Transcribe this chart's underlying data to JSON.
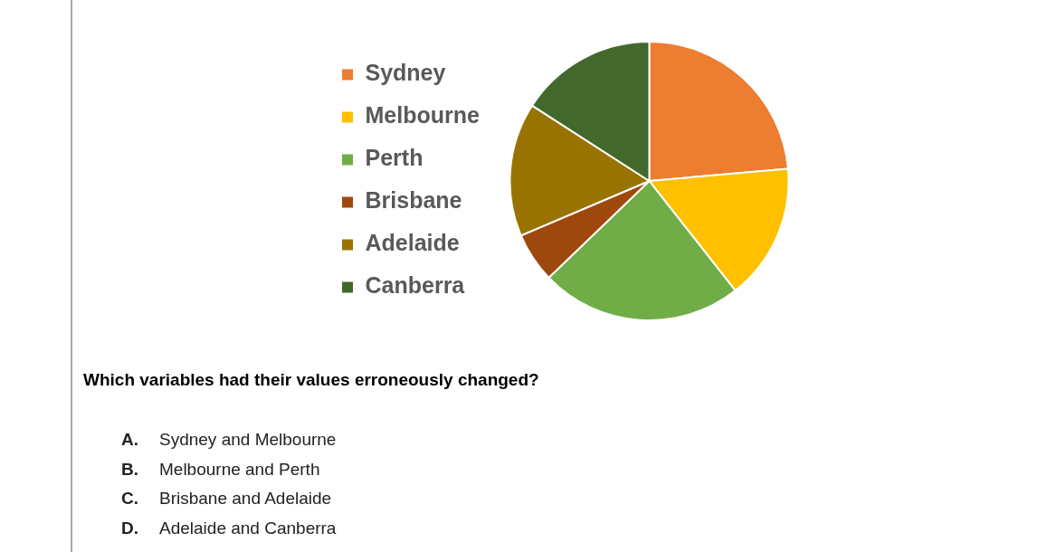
{
  "chart_data": {
    "type": "pie",
    "categories": [
      "Sydney",
      "Melbourne",
      "Perth",
      "Brisbane",
      "Adelaide",
      "Canberra"
    ],
    "values": [
      23.6,
      15.8,
      23.4,
      5.8,
      15.5,
      15.9
    ],
    "colors": [
      "#ed7d31",
      "#ffc000",
      "#70ad47",
      "#9e480e",
      "#997300",
      "#43682b"
    ],
    "legend": "left",
    "annotations": [
      "Which variables had their values erroneously changed?",
      "A. Sydney and Melbourne",
      "B. Melbourne and Perth",
      "C. Brisbane and Adelaide",
      "D. Adelaide and Canberra"
    ]
  }
}
